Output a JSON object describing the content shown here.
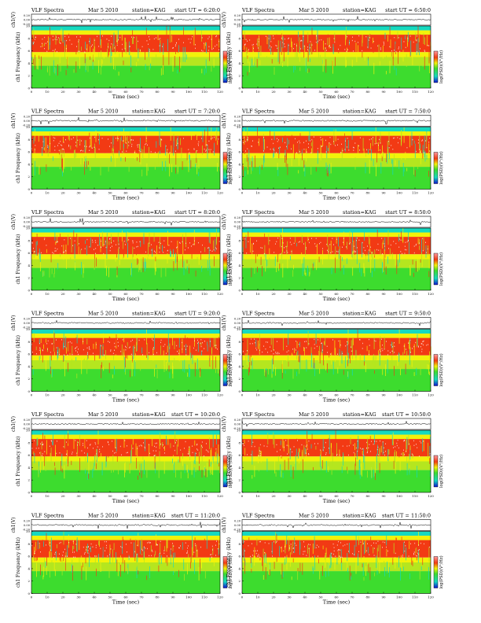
{
  "figure": {
    "colors": {
      "background": "#ffffff",
      "noise": "#15d9c0",
      "low_band": "#3ddc2e",
      "mid_low": "#b5e61f",
      "mid": "#f2f20a",
      "high": "#f23a14",
      "peak": "#ffffff"
    }
  },
  "chart_data": [
    {
      "type": "heatmap",
      "title_left": "VLF Spectra",
      "date": "Mar 5 2010",
      "station": "station=KAG",
      "start": "start UT = 6:20:0",
      "xlabel": "Time (sec)",
      "ylabel": "ch1 Frequency (kHz)",
      "top_ylabel": "ch1(V)",
      "cbar_label": "log(PSD)(V²/Hz)",
      "x_ticks": [
        0,
        10,
        20,
        30,
        40,
        50,
        60,
        70,
        80,
        90,
        100,
        110,
        120
      ],
      "y_ticks": [
        0,
        2,
        4,
        6,
        8,
        10
      ],
      "top_ticks": [
        "0.20",
        "0.00",
        "-0.20"
      ],
      "xlim": [
        0,
        120
      ],
      "ylim": [
        0,
        10
      ]
    },
    {
      "type": "heatmap",
      "title_left": "VLF Spectra",
      "date": "Mar 5 2010",
      "station": "station=KAG",
      "start": "start UT = 6:50:0",
      "xlabel": "Time (sec)",
      "ylabel": "ch1 Frequency (kHz)",
      "top_ylabel": "ch1(V)",
      "cbar_label": "log(PSD)(V²/Hz)",
      "x_ticks": [
        0,
        10,
        20,
        30,
        40,
        50,
        60,
        70,
        80,
        90,
        100,
        110,
        120
      ],
      "y_ticks": [
        0,
        2,
        4,
        6,
        8,
        10
      ],
      "top_ticks": [
        "0.20",
        "0.00",
        "-0.20"
      ],
      "xlim": [
        0,
        120
      ],
      "ylim": [
        0,
        10
      ]
    },
    {
      "type": "heatmap",
      "title_left": "VLF Spectra",
      "date": "Mar 5 2010",
      "station": "station=KAG",
      "start": "start UT = 7:20:0",
      "xlabel": "Time (sec)",
      "ylabel": "ch1 Frequency (kHz)",
      "top_ylabel": "ch1(V)",
      "cbar_label": "log(PSD)(V²/Hz)",
      "x_ticks": [
        0,
        10,
        20,
        30,
        40,
        50,
        60,
        70,
        80,
        90,
        100,
        110,
        120
      ],
      "y_ticks": [
        0,
        2,
        4,
        6,
        8,
        10
      ],
      "top_ticks": [
        "0.20",
        "0.00",
        "-0.20"
      ],
      "xlim": [
        0,
        120
      ],
      "ylim": [
        0,
        10
      ]
    },
    {
      "type": "heatmap",
      "title_left": "VLF Spectra",
      "date": "Mar 5 2010",
      "station": "station=KAG",
      "start": "start UT = 7:50:0",
      "xlabel": "Time (sec)",
      "ylabel": "ch1 Frequency (kHz)",
      "top_ylabel": "ch1(V)",
      "cbar_label": "log(PSD)(V²/Hz)",
      "x_ticks": [
        0,
        10,
        20,
        30,
        40,
        50,
        60,
        70,
        80,
        90,
        100,
        110,
        120
      ],
      "y_ticks": [
        0,
        2,
        4,
        6,
        8,
        10
      ],
      "top_ticks": [
        "0.20",
        "0.00",
        "-0.20"
      ],
      "xlim": [
        0,
        120
      ],
      "ylim": [
        0,
        10
      ]
    },
    {
      "type": "heatmap",
      "title_left": "VLF Spectra",
      "date": "Mar 5 2010",
      "station": "station=KAG",
      "start": "start UT = 8:20:0",
      "xlabel": "Time (sec)",
      "ylabel": "ch1 Frequency (kHz)",
      "top_ylabel": "ch1(V)",
      "cbar_label": "log(PSD)(V²/Hz)",
      "x_ticks": [
        0,
        10,
        20,
        30,
        40,
        50,
        60,
        70,
        80,
        90,
        100,
        110,
        120
      ],
      "y_ticks": [
        0,
        2,
        4,
        6,
        8,
        10
      ],
      "top_ticks": [
        "0.20",
        "0.00",
        "-0.20"
      ],
      "xlim": [
        0,
        120
      ],
      "ylim": [
        0,
        10
      ]
    },
    {
      "type": "heatmap",
      "title_left": "VLF Spectra",
      "date": "Mar 5 2010",
      "station": "station=KAG",
      "start": "start UT = 8:50:0",
      "xlabel": "Time (sec)",
      "ylabel": "ch1 Frequency (kHz)",
      "top_ylabel": "ch1(V)",
      "cbar_label": "log(PSD)(V²/Hz)",
      "x_ticks": [
        0,
        10,
        20,
        30,
        40,
        50,
        60,
        70,
        80,
        90,
        100,
        110,
        120
      ],
      "y_ticks": [
        0,
        2,
        4,
        6,
        8,
        10
      ],
      "top_ticks": [
        "0.20",
        "0.00",
        "-0.20"
      ],
      "xlim": [
        0,
        120
      ],
      "ylim": [
        0,
        10
      ]
    },
    {
      "type": "heatmap",
      "title_left": "VLF Spectra",
      "date": "Mar 5 2010",
      "station": "station=KAG",
      "start": "start UT = 9:20:0",
      "xlabel": "Time (sec)",
      "ylabel": "ch1 Frequency (kHz)",
      "top_ylabel": "ch1(V)",
      "cbar_label": "log(PSD)(V²/Hz)",
      "x_ticks": [
        0,
        10,
        20,
        30,
        40,
        50,
        60,
        70,
        80,
        90,
        100,
        110,
        120
      ],
      "y_ticks": [
        0,
        2,
        4,
        6,
        8,
        10
      ],
      "top_ticks": [
        "0.20",
        "0.00",
        "-0.20"
      ],
      "xlim": [
        0,
        120
      ],
      "ylim": [
        0,
        10
      ]
    },
    {
      "type": "heatmap",
      "title_left": "VLF Spectra",
      "date": "Mar 5 2010",
      "station": "station=KAG",
      "start": "start UT = 9:50:0",
      "xlabel": "Time (sec)",
      "ylabel": "ch1 Frequency (kHz)",
      "top_ylabel": "ch1(V)",
      "cbar_label": "log(PSD)(V²/Hz)",
      "x_ticks": [
        0,
        10,
        20,
        30,
        40,
        50,
        60,
        70,
        80,
        90,
        100,
        110,
        120
      ],
      "y_ticks": [
        0,
        2,
        4,
        6,
        8,
        10
      ],
      "top_ticks": [
        "0.20",
        "0.00",
        "-0.20"
      ],
      "xlim": [
        0,
        120
      ],
      "ylim": [
        0,
        10
      ]
    },
    {
      "type": "heatmap",
      "title_left": "VLF Spectra",
      "date": "Mar 5 2010",
      "station": "station=KAG",
      "start": "start UT = 10:20:0",
      "xlabel": "Time (sec)",
      "ylabel": "ch1 Frequency (kHz)",
      "top_ylabel": "ch1(V)",
      "cbar_label": "log(PSD)(V²/Hz)",
      "x_ticks": [
        0,
        10,
        20,
        30,
        40,
        50,
        60,
        70,
        80,
        90,
        100,
        110,
        120
      ],
      "y_ticks": [
        0,
        2,
        4,
        6,
        8,
        10
      ],
      "top_ticks": [
        "0.20",
        "0.00",
        "-0.20"
      ],
      "xlim": [
        0,
        120
      ],
      "ylim": [
        0,
        10
      ]
    },
    {
      "type": "heatmap",
      "title_left": "VLF Spectra",
      "date": "Mar 5 2010",
      "station": "station=KAG",
      "start": "start UT = 10:50:0",
      "xlabel": "Time (sec)",
      "ylabel": "ch1 Frequency (kHz)",
      "top_ylabel": "ch1(V)",
      "cbar_label": "log(PSD)(V²/Hz)",
      "x_ticks": [
        0,
        10,
        20,
        30,
        40,
        50,
        60,
        70,
        80,
        90,
        100,
        110,
        120
      ],
      "y_ticks": [
        0,
        2,
        4,
        6,
        8,
        10
      ],
      "top_ticks": [
        "0.20",
        "0.00",
        "-0.20"
      ],
      "xlim": [
        0,
        120
      ],
      "ylim": [
        0,
        10
      ]
    },
    {
      "type": "heatmap",
      "title_left": "VLF Spectra",
      "date": "Mar 5 2010",
      "station": "station=KAG",
      "start": "start UT = 11:20:0",
      "xlabel": "Time (sec)",
      "ylabel": "ch1 Frequency (kHz)",
      "top_ylabel": "ch1(V)",
      "cbar_label": "log(PSD)(V²/Hz)",
      "x_ticks": [
        0,
        10,
        20,
        30,
        40,
        50,
        60,
        70,
        80,
        90,
        100,
        110,
        120
      ],
      "y_ticks": [
        0,
        2,
        4,
        6,
        8,
        10
      ],
      "top_ticks": [
        "0.20",
        "0.00",
        "-0.20"
      ],
      "xlim": [
        0,
        120
      ],
      "ylim": [
        0,
        10
      ]
    },
    {
      "type": "heatmap",
      "title_left": "VLF Spectra",
      "date": "Mar 5 2010",
      "station": "station=KAG",
      "start": "start UT = 11:50:0",
      "xlabel": "Time (sec)",
      "ylabel": "ch1 Frequency (kHz)",
      "top_ylabel": "ch1(V)",
      "cbar_label": "log(PSD)(V²/Hz)",
      "x_ticks": [
        0,
        10,
        20,
        30,
        40,
        50,
        60,
        70,
        80,
        90,
        100,
        110,
        120
      ],
      "y_ticks": [
        0,
        2,
        4,
        6,
        8,
        10
      ],
      "top_ticks": [
        "0.20",
        "0.00",
        "-0.20"
      ],
      "xlim": [
        0,
        120
      ],
      "ylim": [
        0,
        10
      ]
    }
  ]
}
